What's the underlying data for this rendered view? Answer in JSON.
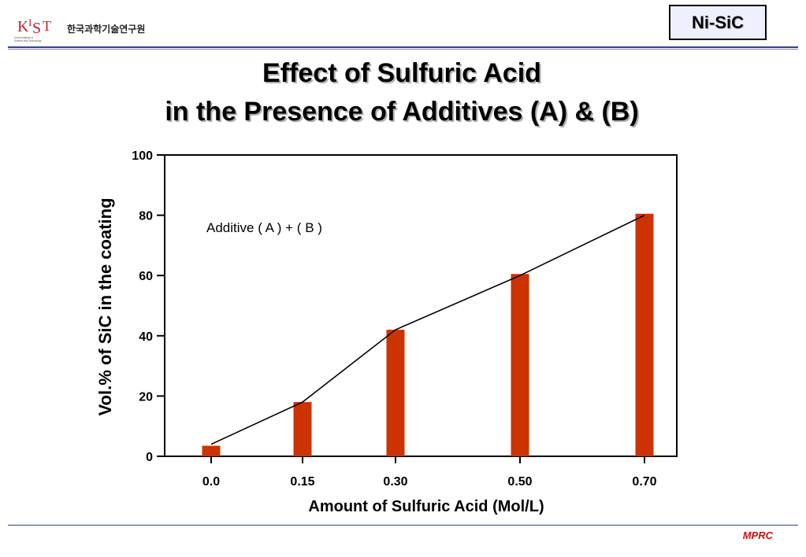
{
  "header": {
    "org_name": "한국과학기술연구원",
    "logo_text": "KIST",
    "logo_subtext": "Korea Institute of Science and Technology",
    "tag": "Ni-SiC"
  },
  "title_lines": [
    "Effect of Sulfuric Acid",
    "in the Presence of Additives (A) & (B)"
  ],
  "footer": {
    "brand": "MPRC"
  },
  "colors": {
    "bar": "#cc3300",
    "rule": "#2a3ea8",
    "brand": "#c81010",
    "line": "#000000"
  },
  "chart_data": {
    "type": "bar",
    "categories": [
      "0.0",
      "0.15",
      "0.30",
      "0.50",
      "0.70"
    ],
    "values": [
      3.5,
      18,
      42,
      60.5,
      80.5
    ],
    "trend_line": [
      4,
      18,
      42,
      60,
      80
    ],
    "annotation": "Additive ( A ) + ( B )",
    "xlabel": "Amount of Sulfuric Acid (Mol/L)",
    "ylabel": "Vol.% of SiC in the coating",
    "ylim": [
      0,
      100
    ],
    "yticks": [
      0,
      20,
      40,
      60,
      80,
      100
    ],
    "grid": false
  }
}
